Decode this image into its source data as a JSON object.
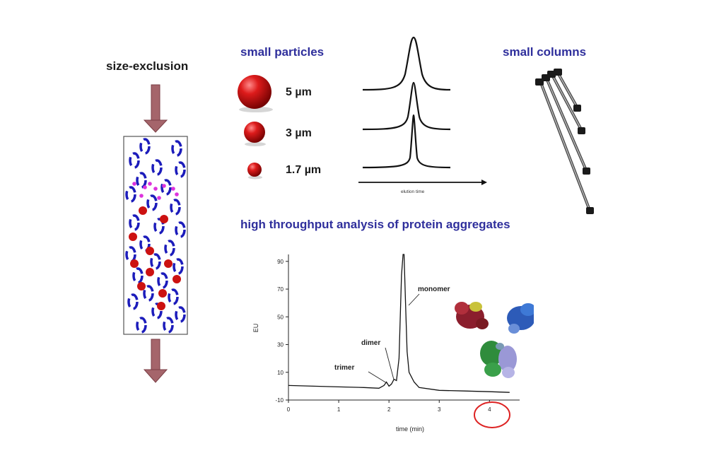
{
  "left": {
    "title": "size-exclusion"
  },
  "particles": {
    "title": "small particles",
    "sizes": [
      {
        "label": "5 µm"
      },
      {
        "label": "3 µm"
      },
      {
        "label": "1.7 µm"
      }
    ],
    "axis_label": "elution time"
  },
  "columns": {
    "title": "small columns"
  },
  "chart": {
    "title": "high throughput analysis of protein aggregates",
    "xlabel": "time (min)",
    "ylabel": "EU",
    "x_ticks": [
      "0",
      "1",
      "2",
      "3",
      "4"
    ],
    "y_ticks": [
      "-10",
      "10",
      "30",
      "50",
      "70",
      "90"
    ],
    "annotations": {
      "trimer": "trimer",
      "dimer": "dimer",
      "monomer": "monomer"
    }
  },
  "chart_data": {
    "type": "line",
    "title": "high throughput analysis of protein aggregates",
    "xlabel": "time (min)",
    "ylabel": "EU",
    "xlim": [
      0,
      4.6
    ],
    "ylim": [
      -10,
      95
    ],
    "x": [
      0.0,
      0.5,
      1.0,
      1.5,
      1.8,
      1.9,
      1.95,
      2.0,
      2.05,
      2.1,
      2.15,
      2.2,
      2.25,
      2.28,
      2.3,
      2.33,
      2.36,
      2.4,
      2.5,
      2.6,
      3.0,
      3.5,
      4.0,
      4.4
    ],
    "y": [
      0.5,
      0.0,
      -0.5,
      -1.0,
      -1.5,
      0.5,
      3.0,
      0.0,
      1.5,
      5.0,
      4.0,
      20.0,
      80.0,
      95.0,
      95.0,
      60.0,
      25.0,
      10.0,
      3.0,
      -1.0,
      -3.0,
      -3.5,
      -4.0,
      -4.5
    ],
    "annotations": [
      "trimer",
      "dimer",
      "monomer"
    ],
    "colors": {
      "line": "#111111",
      "highlight_circle": "#dd2222"
    }
  },
  "colors": {
    "header_blue": "#2f2f9c",
    "arrow": "#a5656b",
    "particle_red": "#cc1111",
    "ellipse_blue": "#1c1cbb",
    "small_magenta": "#dd33dd"
  }
}
